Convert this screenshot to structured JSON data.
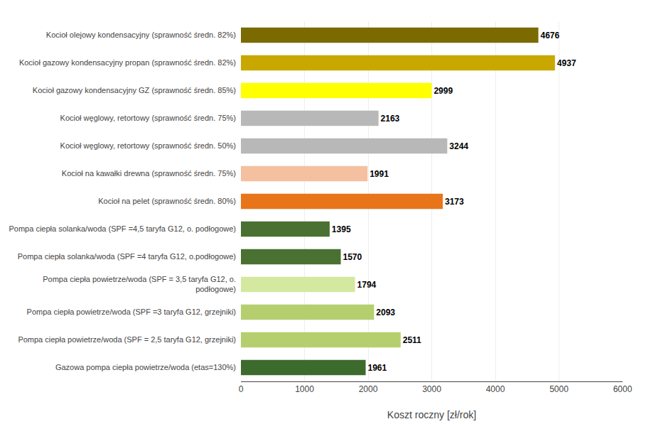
{
  "chart_data": {
    "type": "bar",
    "orientation": "horizontal",
    "categories": [
      "Gazowa pompa ciepła powietrze/woda (etas=130%)",
      "Pompa ciepła powietrze/woda (SPF = 2,5 taryfa G12, grzejniki)",
      "Pompa ciepła powietrze/woda (SPF =3 taryfa G12, grzejniki)",
      "Pompa ciepła powietrze/woda (SPF = 3,5 taryfa G12, o.\npodłogowe)",
      "Pompa ciepła solanka/woda (SPF =4 taryfa G12, o.podłogowe)",
      "Pompa ciepła solanka/woda (SPF =4,5 taryfa G12, o. podłogowe)",
      "Kocioł na pelet (sprawność średn. 80%)",
      "Kocioł na kawałki drewna (sprawność średn. 75%)",
      "Kocioł węglowy, retortowy (sprawność średn. 50%)",
      "Kocioł węglowy, retortowy (sprawność średn. 75%)",
      "Kocioł gazowy kondensacyjny GZ (sprawność średn. 85%)",
      "Kocioł gazowy kondensacyjny propan (sprawność średn. 82%)",
      "Kocioł olejowy kondensacyjny (sprawność średn. 82%)"
    ],
    "values": [
      1961,
      2511,
      2093,
      1794,
      1570,
      1395,
      3173,
      1991,
      3244,
      2163,
      2999,
      4937,
      4676
    ],
    "colors": [
      "#3d6b2e",
      "#b5cf6e",
      "#b5cf6e",
      "#d4e8a0",
      "#4a7032",
      "#4a7032",
      "#e8751a",
      "#f5c0a0",
      "#b8b8b8",
      "#b8b8b8",
      "#ffff00",
      "#c8a800",
      "#7a6a00"
    ],
    "x_label": "Koszt roczny [zł/rok]",
    "xlim": [
      0,
      6000
    ],
    "xticks": [
      0,
      1000,
      2000,
      3000,
      4000,
      5000,
      6000
    ],
    "grid": true,
    "data_labels": true
  }
}
